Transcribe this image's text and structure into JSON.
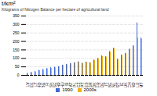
{
  "chart_data": {
    "type": "bar",
    "title": "t/km²",
    "ylabel": "Kilograms of Nitrogen Balance per hectare of agricultural land",
    "categories": [
      "LV",
      "EE",
      "LT",
      "RO",
      "BG",
      "FI",
      "SK",
      "SE",
      "HR",
      "HU",
      "SI",
      "AT",
      "PL",
      "CZ",
      "PT",
      "ES",
      "GR",
      "DK",
      "FR",
      "DE",
      "IT",
      "BE",
      "NL",
      "EU27",
      "IE",
      "UK",
      "CH",
      "NO",
      "LU",
      "MT"
    ],
    "series": [
      {
        "name": "1990",
        "values": [
          12,
          18,
          22,
          30,
          35,
          40,
          45,
          48,
          52,
          60,
          65,
          70,
          75,
          80,
          72,
          78,
          75,
          90,
          100,
          115,
          110,
          140,
          160,
          95,
          120,
          130,
          155,
          175,
          310,
          220
        ]
      },
      {
        "name": "2000s",
        "values": [
          10,
          15,
          20,
          28,
          32,
          38,
          42,
          45,
          50,
          58,
          62,
          68,
          72,
          78,
          70,
          76,
          72,
          88,
          98,
          112,
          108,
          138,
          158,
          92,
          118,
          128,
          152,
          172,
          220,
          215
        ]
      }
    ],
    "ylim": [
      0,
      350
    ],
    "yticks": [
      0,
      50,
      100,
      150,
      200,
      250,
      300,
      350
    ],
    "grid": true,
    "legend": "bottom"
  }
}
